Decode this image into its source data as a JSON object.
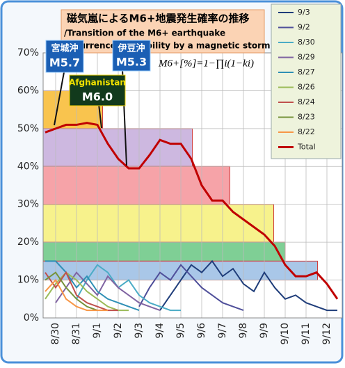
{
  "chart_data": {
    "type": "line",
    "title": "磁気嵐によるM6+地震発生確率の推移",
    "subtitle": "/Transition of the M6+ earthquake",
    "subtitle2": "occurrence probability by a magnetic storm.",
    "formula": "M6+[%]=1−∏i(1−ki)",
    "annotations": [
      {
        "name": "宮城沖",
        "label": "M5.7"
      },
      {
        "name": "Afghanistan",
        "label": "M6.0"
      },
      {
        "name": "伊豆沖",
        "label": "M5.3"
      }
    ],
    "categories": [
      null,
      "8/30",
      null,
      "8/31",
      null,
      "9/1",
      null,
      "9/2",
      null,
      "9/3",
      null,
      "9/4",
      null,
      "9/5",
      null,
      "9/6",
      null,
      "9/7",
      null,
      "9/8",
      null,
      "9/9",
      null,
      "9/10",
      null,
      "9/11",
      null,
      "9/12",
      null
    ],
    "ylim": [
      0,
      70
    ],
    "yticks": [
      {
        "value": 0,
        "label": "0%"
      },
      {
        "value": 10,
        "label": "10%"
      },
      {
        "value": 20,
        "label": "20%"
      },
      {
        "value": 30,
        "label": "30%"
      },
      {
        "value": 40,
        "label": "40%"
      },
      {
        "value": 50,
        "label": "50%"
      },
      {
        "value": 60,
        "label": "60%"
      },
      {
        "value": 70,
        "label": "70%"
      }
    ],
    "grid": true,
    "bands": [
      {
        "low": 50,
        "high": 60,
        "end": 5.5,
        "color": "#f9c44e"
      },
      {
        "low": 40,
        "high": 50,
        "end": 14.1,
        "color": "#cdb8e0"
      },
      {
        "low": 30,
        "high": 40,
        "end": 17.7,
        "color": "#f6a3a8"
      },
      {
        "low": 20,
        "high": 30,
        "end": 21.9,
        "color": "#f7f28c"
      },
      {
        "low": 15,
        "high": 20,
        "end": 23,
        "color": "#7fcf95"
      },
      {
        "low": 10,
        "high": 15,
        "end": 26.1,
        "color": "#a9c7e8"
      }
    ],
    "series": [
      {
        "name": "9/3",
        "color": "#1f3d7a",
        "values": [
          null,
          null,
          null,
          null,
          null,
          null,
          null,
          null,
          null,
          null,
          null,
          2,
          6,
          10,
          14,
          12,
          15,
          11,
          13,
          9,
          7,
          12,
          8,
          5,
          6,
          4,
          3,
          2,
          2
        ]
      },
      {
        "name": "9/2",
        "color": "#4f4f9a",
        "values": [
          null,
          null,
          null,
          null,
          null,
          null,
          null,
          null,
          null,
          3,
          8,
          12,
          10,
          14,
          11,
          8,
          6,
          4,
          3,
          2,
          null,
          null,
          null,
          null,
          null,
          null,
          null,
          null,
          null
        ]
      },
      {
        "name": "8/30",
        "color": "#4bacc6",
        "values": [
          null,
          null,
          null,
          5,
          10,
          14,
          12,
          8,
          10,
          6,
          4,
          3,
          2,
          2,
          null,
          null,
          null,
          null,
          null,
          null,
          null,
          null,
          null,
          null,
          null,
          null,
          null,
          null,
          null
        ]
      },
      {
        "name": "8/29",
        "color": "#8064a2",
        "values": [
          null,
          4,
          8,
          12,
          9,
          6,
          11,
          8,
          6,
          4,
          3,
          2,
          null,
          null,
          null,
          null,
          null,
          null,
          null,
          null,
          null,
          null,
          null,
          null,
          null,
          null,
          null,
          null,
          null
        ]
      },
      {
        "name": "8/27",
        "color": "#2e8fb5",
        "values": [
          15,
          15,
          12,
          8,
          11,
          7,
          5,
          4,
          3,
          2,
          null,
          null,
          null,
          null,
          null,
          null,
          null,
          null,
          null,
          null,
          null,
          null,
          null,
          null,
          null,
          null,
          null,
          null,
          null
        ]
      },
      {
        "name": "8/26",
        "color": "#9bbb59",
        "values": [
          5,
          9,
          12,
          10,
          7,
          5,
          3,
          2,
          2,
          null,
          null,
          null,
          null,
          null,
          null,
          null,
          null,
          null,
          null,
          null,
          null,
          null,
          null,
          null,
          null,
          null,
          null,
          null,
          null
        ]
      },
      {
        "name": "8/24",
        "color": "#c0504d",
        "values": [
          12,
          8,
          12,
          6,
          4,
          3,
          2,
          2,
          null,
          null,
          null,
          null,
          null,
          null,
          null,
          null,
          null,
          null,
          null,
          null,
          null,
          null,
          null,
          null,
          null,
          null,
          null,
          null,
          null
        ]
      },
      {
        "name": "8/23",
        "color": "#77933c",
        "values": [
          10,
          12,
          8,
          5,
          3,
          2,
          null,
          null,
          null,
          null,
          null,
          null,
          null,
          null,
          null,
          null,
          null,
          null,
          null,
          null,
          null,
          null,
          null,
          null,
          null,
          null,
          null,
          null,
          null
        ]
      },
      {
        "name": "8/22",
        "color": "#f79646",
        "values": [
          7,
          10,
          5,
          3,
          2,
          2,
          2,
          null,
          null,
          null,
          null,
          null,
          null,
          null,
          null,
          null,
          null,
          null,
          null,
          null,
          null,
          null,
          null,
          null,
          null,
          null,
          null,
          null,
          null
        ]
      },
      {
        "name": "Total",
        "color": "#c00000",
        "values": [
          49,
          50,
          51,
          51,
          51.5,
          51,
          46,
          42,
          39.5,
          39.5,
          43,
          47,
          46,
          46,
          42,
          35,
          31,
          31,
          28,
          26,
          24,
          22,
          19,
          14,
          11,
          11,
          12,
          9,
          5
        ]
      }
    ]
  }
}
